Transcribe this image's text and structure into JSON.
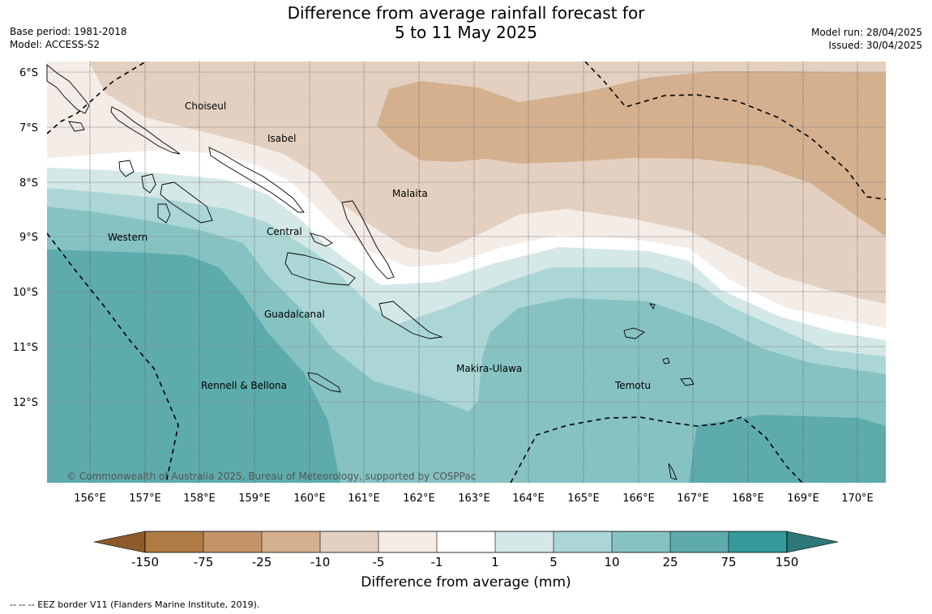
{
  "header": {
    "title_line1": "Difference from average rainfall forecast for",
    "title_line2": "5 to 11 May 2025",
    "base_period": "Base period: 1981-2018",
    "model": "Model: ACCESS-S2",
    "model_run": "Model run: 28/04/2025",
    "issued": "Issued: 30/04/2025"
  },
  "map": {
    "lat_labels": [
      "6°S",
      "7°S",
      "8°S",
      "9°S",
      "10°S",
      "11°S",
      "12°S"
    ],
    "lon_labels": [
      "156°E",
      "157°E",
      "158°E",
      "159°E",
      "160°E",
      "161°E",
      "162°E",
      "163°E",
      "164°E",
      "165°E",
      "166°E",
      "167°E",
      "168°E",
      "169°E",
      "170°E"
    ],
    "places": {
      "choiseul": "Choiseul",
      "isabel": "Isabel",
      "malaita": "Malaita",
      "western": "Western",
      "central": "Central",
      "guadalcanal": "Guadalcanal",
      "makira": "Makira-Ulawa",
      "temotu": "Temotu",
      "rennell": "Rennell & Bellona"
    },
    "copyright": "© Commonwealth of Australia 2025, Bureau of Meteorology, supported by COSPPac"
  },
  "colorbar": {
    "labels": [
      "-150",
      "-75",
      "-25",
      "-10",
      "-5",
      "-1",
      "1",
      "5",
      "10",
      "25",
      "75",
      "150"
    ],
    "colors": {
      "below_min": "#8f5a2a",
      "c1": "#b07a44",
      "c2": "#c3946a",
      "c3": "#d4b08f",
      "c4": "#e3d0c0",
      "c5": "#f4ece7",
      "c6": "#ffffff",
      "c7": "#d4e8e7",
      "c8": "#acd6d6",
      "c9": "#86c2c2",
      "c10": "#5eabac",
      "c11": "#36999a",
      "above_max": "#2e7878"
    },
    "title": "Difference from average (mm)"
  },
  "footnote": "--  --  -- EEZ border V11 (Flanders Marine Institute, 2019)."
}
